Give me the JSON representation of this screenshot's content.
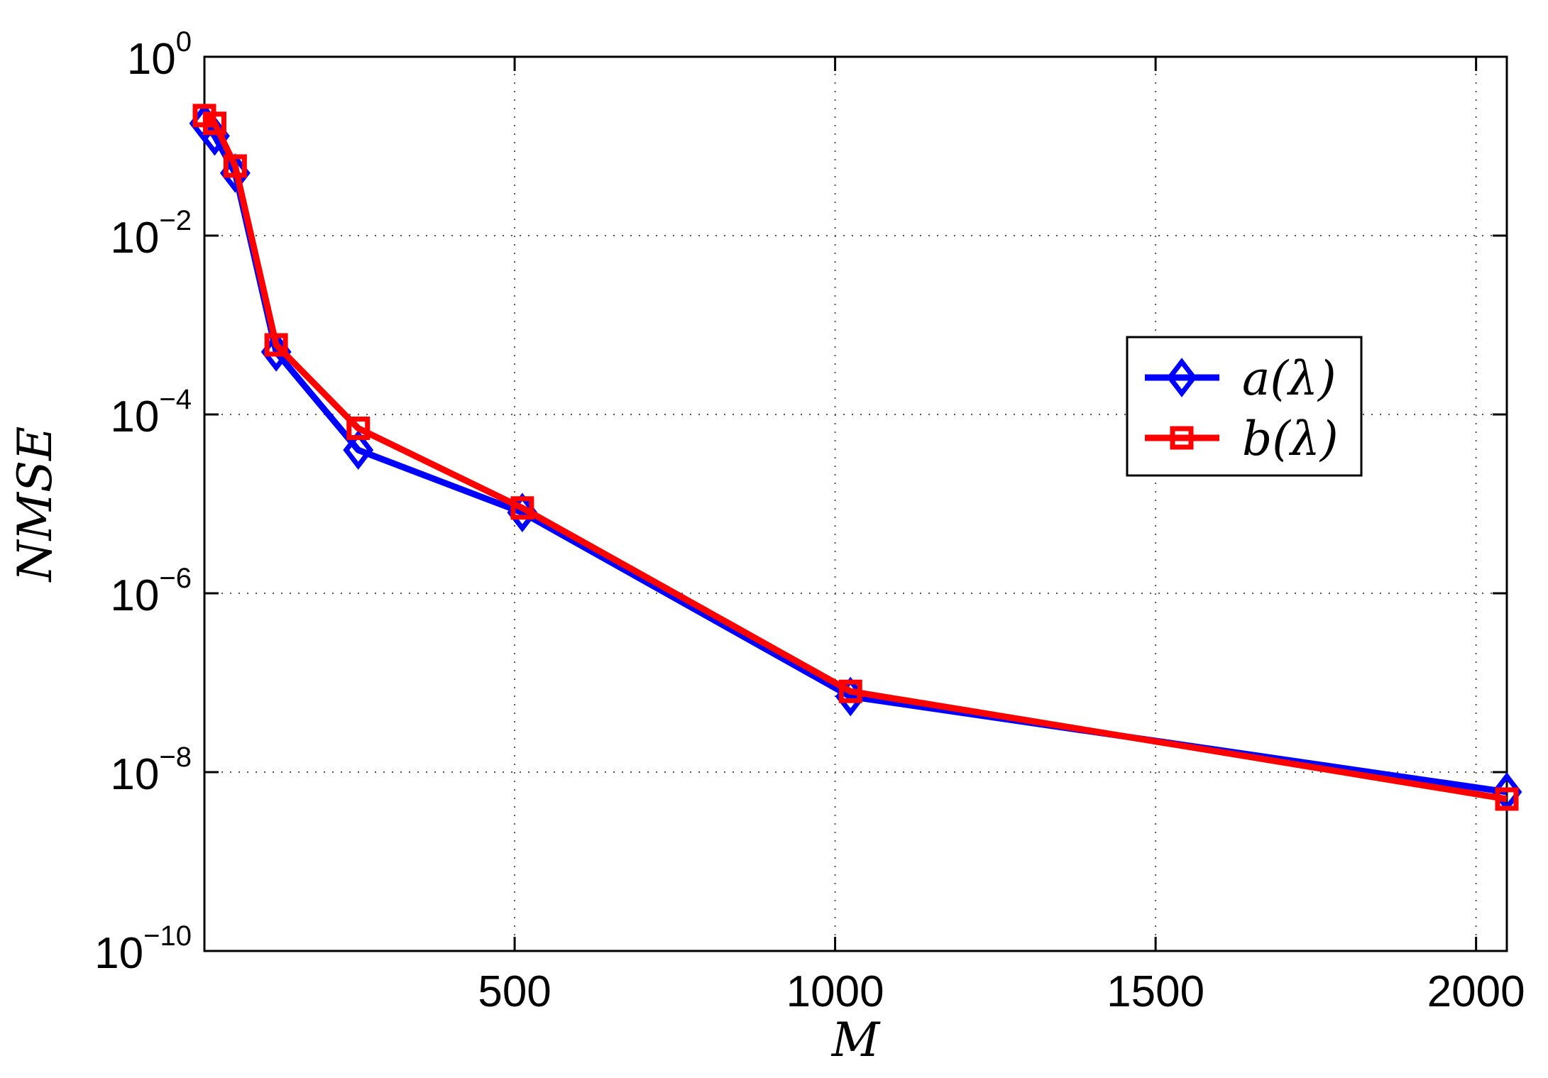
{
  "chart_data": {
    "type": "line",
    "xlabel": "M",
    "ylabel": "NMSE",
    "y_scale": "log",
    "xlim": [
      16,
      2048
    ],
    "ylim_exponents": [
      -10,
      0
    ],
    "x_ticks": [
      500,
      1000,
      1500,
      2000
    ],
    "y_ticks": [
      {
        "base": "10",
        "exp": "0"
      },
      {
        "base": "10",
        "exp": "−2"
      },
      {
        "base": "10",
        "exp": "−4"
      },
      {
        "base": "10",
        "exp": "−6"
      },
      {
        "base": "10",
        "exp": "−8"
      },
      {
        "base": "10",
        "exp": "−10"
      }
    ],
    "grid": true,
    "legend_position": "right",
    "series": [
      {
        "name": "a(λ)",
        "color": "#0000ff",
        "marker": "diamond",
        "x": [
          16,
          32,
          64,
          128,
          256,
          512,
          1024,
          2048
        ],
        "y": [
          0.18,
          0.13,
          0.05,
          0.0005,
          4e-05,
          8e-06,
          7e-08,
          6e-09
        ]
      },
      {
        "name": "b(λ)",
        "color": "#ff0000",
        "marker": "square",
        "x": [
          16,
          32,
          64,
          128,
          256,
          512,
          1024,
          2048
        ],
        "y": [
          0.22,
          0.18,
          0.06,
          0.0006,
          7e-05,
          9e-06,
          8e-08,
          5e-09
        ]
      }
    ]
  }
}
